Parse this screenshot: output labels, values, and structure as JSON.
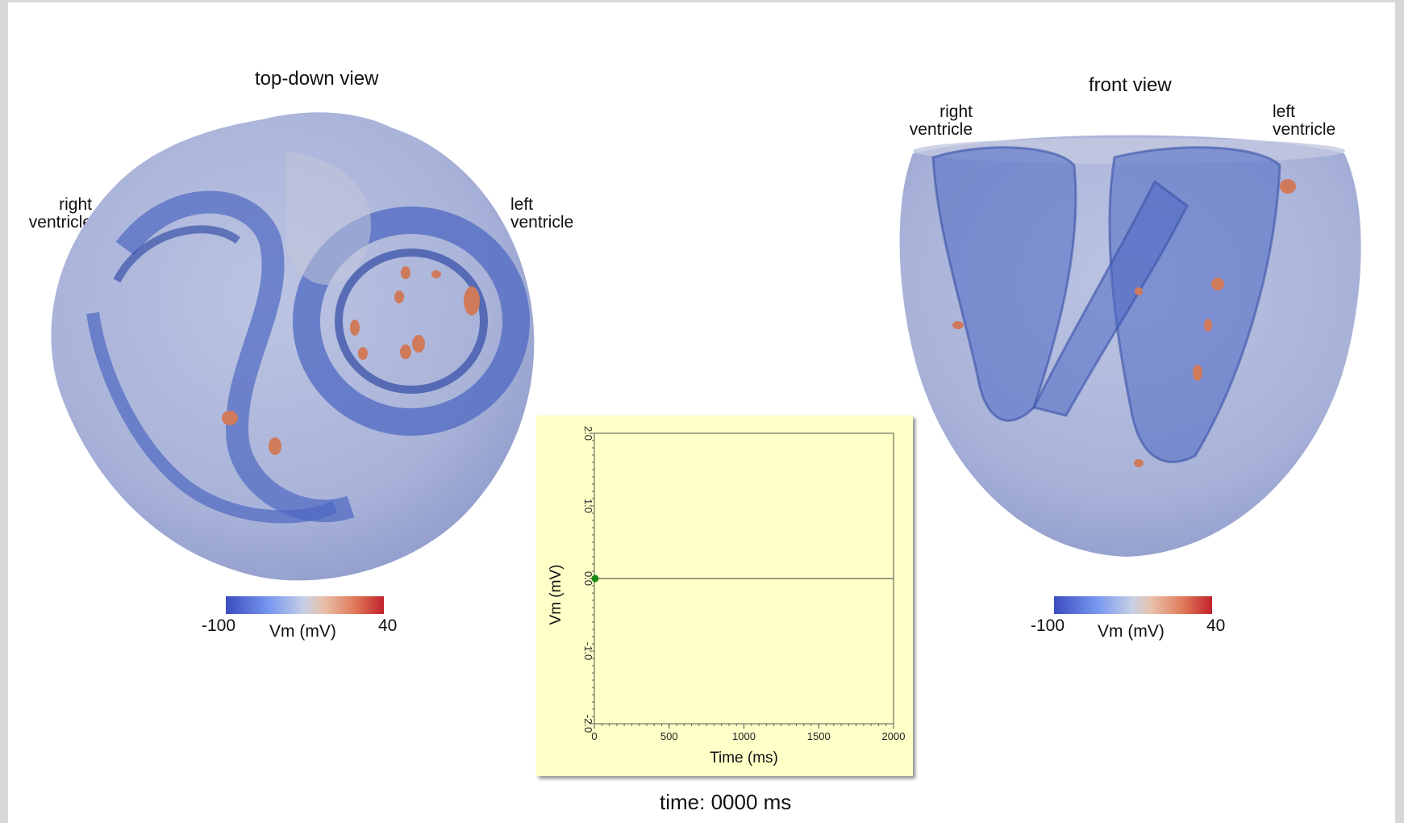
{
  "left_view": {
    "title": "top-down view",
    "label_a": [
      "right",
      "ventricle"
    ],
    "label_b": [
      "left",
      "ventricle"
    ],
    "colorbar": {
      "min": "-100",
      "max": "40",
      "title": "Vm (mV)"
    }
  },
  "right_view": {
    "title": "front view",
    "label_a": [
      "right",
      "ventricle"
    ],
    "label_b": [
      "left",
      "ventricle"
    ],
    "colorbar": {
      "min": "-100",
      "max": "40",
      "title": "Vm (mV)"
    }
  },
  "colors": {
    "heart_body": "#a9b3d9",
    "heart_dark": "#4d68c2",
    "depolarized": "#d07a5c",
    "plot_bg": "#ffffc8",
    "trace": "#1a8a1a"
  },
  "chart_data": {
    "type": "line",
    "xlabel": "Time (ms)",
    "ylabel": "Vm (mV)",
    "xlim": [
      0,
      2000
    ],
    "ylim": [
      -2.0,
      2.0
    ],
    "x_ticks": [
      "0",
      "500",
      "1000",
      "1500",
      "2000"
    ],
    "y_ticks": [
      "-2.0",
      "-1.0",
      "0.0",
      "1.0",
      "2.0"
    ],
    "series": [
      {
        "x": [
          0,
          5
        ],
        "y": [
          0.0,
          0.0
        ]
      }
    ],
    "marker": {
      "x": 5,
      "y": 0.0
    }
  },
  "time_readout": "time: 0000 ms"
}
